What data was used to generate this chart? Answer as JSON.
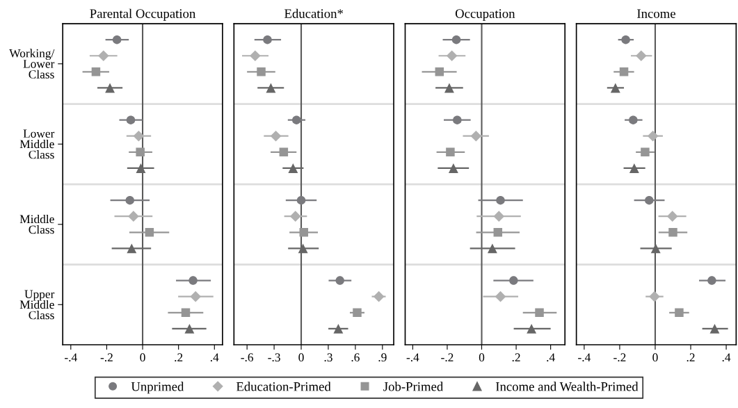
{
  "chart_data": [
    {
      "type": "scatter",
      "orientation": "horizontal",
      "title": "Parental Occupation",
      "categories": [
        "Working/\nLower\nClass",
        "Lower\nMiddle\nClass",
        "Middle\nClass",
        "Upper\nMiddle\nClass"
      ],
      "xlim": [
        -0.445,
        0.445
      ],
      "xticks": [
        {
          "value": -0.4,
          "label": "-.4"
        },
        {
          "value": -0.2,
          "label": "-.2"
        },
        0,
        {
          "value": 0.2,
          "label": ".2"
        },
        {
          "value": 0.4,
          "label": ".4"
        }
      ],
      "grid": "y",
      "legend": "bottom",
      "ref_lines": [
        {
          "axis": "x",
          "value": 0,
          "color": "#5a5a5a"
        }
      ],
      "series": [
        {
          "name": "Unprimed",
          "color": "#7a7a7e",
          "marker": "circle",
          "values": [
            -0.143,
            -0.066,
            -0.071,
            0.281
          ],
          "errors": [
            [
              -0.207,
              -0.077
            ],
            [
              -0.13,
              0.0
            ],
            [
              -0.18,
              0.039
            ],
            [
              0.186,
              0.38
            ]
          ]
        },
        {
          "name": "Education-Primed",
          "color": "#b0b0b0",
          "marker": "diamond",
          "values": [
            -0.218,
            -0.022,
            -0.051,
            0.295
          ],
          "errors": [
            [
              -0.295,
              -0.141
            ],
            [
              -0.09,
              0.047
            ],
            [
              -0.157,
              0.055
            ],
            [
              0.198,
              0.394
            ]
          ]
        },
        {
          "name": "Job-Primed",
          "color": "#959595",
          "marker": "square",
          "values": [
            -0.26,
            -0.013,
            0.038,
            0.24
          ],
          "errors": [
            [
              -0.335,
              -0.186
            ],
            [
              -0.077,
              0.054
            ],
            [
              -0.074,
              0.148
            ],
            [
              0.141,
              0.338
            ]
          ]
        },
        {
          "name": "Income and Wealth-Primed",
          "color": "#666666",
          "marker": "triangle",
          "values": [
            -0.182,
            -0.01,
            -0.061,
            0.261
          ],
          "errors": [
            [
              -0.252,
              -0.112
            ],
            [
              -0.086,
              0.064
            ],
            [
              -0.172,
              0.047
            ],
            [
              0.164,
              0.355
            ]
          ]
        }
      ]
    },
    {
      "type": "scatter",
      "orientation": "horizontal",
      "title": "Education*",
      "tick_labels": "x",
      "xlim": [
        -0.745,
        1.025
      ],
      "xticks": [
        {
          "value": -0.6,
          "label": "-.6"
        },
        {
          "value": -0.3,
          "label": "-.3"
        },
        0,
        {
          "value": 0.3,
          "label": ".3"
        },
        {
          "value": 0.6,
          "label": ".6"
        },
        {
          "value": 0.9,
          "label": ".9"
        }
      ],
      "grid": "y",
      "ref_lines": [
        {
          "axis": "x",
          "value": 0,
          "color": "#5a5a5a"
        }
      ],
      "series": [
        {
          "name": "Unprimed",
          "color": "#7a7a7e",
          "marker": "circle",
          "values": [
            -0.374,
            -0.052,
            0.0,
            0.429
          ],
          "errors": [
            [
              -0.518,
              -0.223
            ],
            [
              -0.148,
              0.046
            ],
            [
              -0.171,
              0.171
            ],
            [
              0.304,
              0.556
            ]
          ]
        },
        {
          "name": "Education-Primed",
          "color": "#b0b0b0",
          "marker": "diamond",
          "values": [
            -0.51,
            -0.281,
            -0.064,
            0.86
          ],
          "errors": [
            [
              -0.655,
              -0.362
            ],
            [
              -0.414,
              -0.142
            ],
            [
              -0.188,
              0.064
            ],
            [
              0.782,
              0.936
            ]
          ]
        },
        {
          "name": "Job-Primed",
          "color": "#959595",
          "marker": "square",
          "values": [
            -0.443,
            -0.194,
            0.029,
            0.62
          ],
          "errors": [
            [
              -0.6,
              -0.287
            ],
            [
              -0.339,
              -0.052
            ],
            [
              -0.13,
              0.185
            ],
            [
              0.539,
              0.701
            ]
          ]
        },
        {
          "name": "Income and Wealth-Primed",
          "color": "#666666",
          "marker": "triangle",
          "values": [
            -0.336,
            -0.09,
            0.02,
            0.411
          ],
          "errors": [
            [
              -0.484,
              -0.191
            ],
            [
              -0.206,
              0.026
            ],
            [
              -0.145,
              0.194
            ],
            [
              0.301,
              0.52
            ]
          ]
        }
      ]
    },
    {
      "type": "scatter",
      "orientation": "horizontal",
      "title": "Occupation",
      "tick_labels": "x",
      "xlim": [
        -0.444,
        0.483
      ],
      "xticks": [
        {
          "value": -0.4,
          "label": "-.4"
        },
        {
          "value": -0.2,
          "label": "-.2"
        },
        0,
        {
          "value": 0.2,
          "label": ".2"
        },
        {
          "value": 0.4,
          "label": ".4"
        }
      ],
      "grid": "y",
      "ref_lines": [
        {
          "axis": "x",
          "value": 0,
          "color": "#5a5a5a"
        }
      ],
      "series": [
        {
          "name": "Unprimed",
          "color": "#7a7a7e",
          "marker": "circle",
          "values": [
            -0.147,
            -0.142,
            0.109,
            0.185
          ],
          "errors": [
            [
              -0.226,
              -0.068
            ],
            [
              -0.22,
              -0.064
            ],
            [
              -0.02,
              0.239
            ],
            [
              0.068,
              0.3
            ]
          ]
        },
        {
          "name": "Education-Primed",
          "color": "#b0b0b0",
          "marker": "diamond",
          "values": [
            -0.173,
            -0.033,
            0.1,
            0.109
          ],
          "errors": [
            [
              -0.25,
              -0.094
            ],
            [
              -0.109,
              0.042
            ],
            [
              -0.029,
              0.227
            ],
            [
              0.008,
              0.212
            ]
          ]
        },
        {
          "name": "Job-Primed",
          "color": "#959595",
          "marker": "square",
          "values": [
            -0.245,
            -0.182,
            0.094,
            0.335
          ],
          "errors": [
            [
              -0.347,
              -0.145
            ],
            [
              -0.262,
              -0.098
            ],
            [
              -0.032,
              0.22
            ],
            [
              0.239,
              0.435
            ]
          ]
        },
        {
          "name": "Income and Wealth-Primed",
          "color": "#666666",
          "marker": "triangle",
          "values": [
            -0.188,
            -0.164,
            0.062,
            0.289
          ],
          "errors": [
            [
              -0.268,
              -0.108
            ],
            [
              -0.255,
              -0.074
            ],
            [
              -0.068,
              0.194
            ],
            [
              0.186,
              0.4
            ]
          ]
        }
      ]
    },
    {
      "type": "scatter",
      "orientation": "horizontal",
      "title": "Income",
      "tick_labels": "x",
      "xlim": [
        -0.444,
        0.456
      ],
      "xticks": [
        {
          "value": -0.4,
          "label": "-.4"
        },
        {
          "value": -0.2,
          "label": "-.2"
        },
        0,
        {
          "value": 0.2,
          "label": ".2"
        },
        {
          "value": 0.4,
          "label": ".4"
        }
      ],
      "grid": "y",
      "ref_lines": [
        {
          "axis": "x",
          "value": 0,
          "color": "#5a5a5a"
        }
      ],
      "series": [
        {
          "name": "Unprimed",
          "color": "#7a7a7e",
          "marker": "circle",
          "values": [
            -0.166,
            -0.124,
            -0.034,
            0.319
          ],
          "errors": [
            [
              -0.209,
              -0.121
            ],
            [
              -0.172,
              -0.072
            ],
            [
              -0.119,
              0.053
            ],
            [
              0.247,
              0.396
            ]
          ]
        },
        {
          "name": "Education-Primed",
          "color": "#b0b0b0",
          "marker": "diamond",
          "values": [
            -0.079,
            -0.013,
            0.097,
            -0.004
          ],
          "errors": [
            [
              -0.137,
              -0.018
            ],
            [
              -0.069,
              0.043
            ],
            [
              0.018,
              0.175
            ],
            [
              -0.054,
              0.046
            ]
          ]
        },
        {
          "name": "Job-Primed",
          "color": "#959595",
          "marker": "square",
          "values": [
            -0.176,
            -0.057,
            0.1,
            0.135
          ],
          "errors": [
            [
              -0.234,
              -0.119
            ],
            [
              -0.109,
              -0.004
            ],
            [
              0.019,
              0.181
            ],
            [
              0.079,
              0.191
            ]
          ]
        },
        {
          "name": "Income and Wealth-Primed",
          "color": "#666666",
          "marker": "triangle",
          "values": [
            -0.224,
            -0.118,
            0.003,
            0.335
          ],
          "errors": [
            [
              -0.271,
              -0.176
            ],
            [
              -0.178,
              -0.056
            ],
            [
              -0.084,
              0.093
            ],
            [
              0.265,
              0.41
            ]
          ]
        }
      ]
    }
  ]
}
